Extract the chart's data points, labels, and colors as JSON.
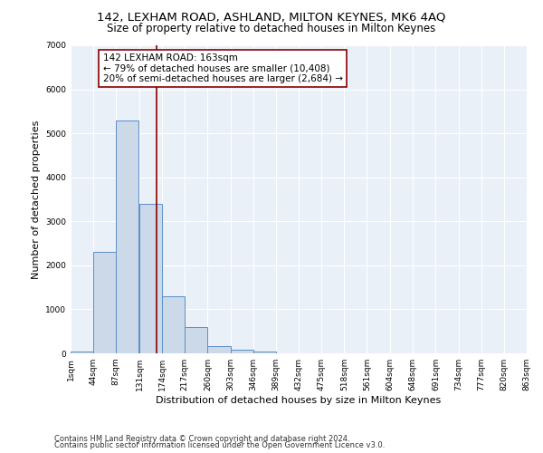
{
  "title1": "142, LEXHAM ROAD, ASHLAND, MILTON KEYNES, MK6 4AQ",
  "title2": "Size of property relative to detached houses in Milton Keynes",
  "xlabel": "Distribution of detached houses by size in Milton Keynes",
  "ylabel": "Number of detached properties",
  "footnote1": "Contains HM Land Registry data © Crown copyright and database right 2024.",
  "footnote2": "Contains public sector information licensed under the Open Government Licence v3.0.",
  "bar_starts": [
    1,
    44,
    87,
    131,
    174,
    217,
    260,
    303,
    346,
    389,
    432,
    475,
    518,
    561,
    604,
    648,
    691,
    734,
    777,
    820
  ],
  "bar_heights": [
    50,
    2300,
    5300,
    3400,
    1300,
    600,
    175,
    80,
    35,
    10,
    5,
    2,
    1,
    0,
    0,
    0,
    0,
    0,
    0,
    0
  ],
  "bin_width": 43,
  "bar_color": "#ccd9e8",
  "bar_edge_color": "#5b8fc9",
  "vline_x": 163,
  "vline_color": "#8b0000",
  "annotation_line1": "142 LEXHAM ROAD: 163sqm",
  "annotation_line2": "← 79% of detached houses are smaller (10,408)",
  "annotation_line3": "20% of semi-detached houses are larger (2,684) →",
  "annotation_box_color": "white",
  "annotation_box_edge": "#8b0000",
  "ylim": [
    0,
    7000
  ],
  "yticks": [
    0,
    1000,
    2000,
    3000,
    4000,
    5000,
    6000,
    7000
  ],
  "x_tick_labels": [
    "1sqm",
    "44sqm",
    "87sqm",
    "131sqm",
    "174sqm",
    "217sqm",
    "260sqm",
    "303sqm",
    "346sqm",
    "389sqm",
    "432sqm",
    "475sqm",
    "518sqm",
    "561sqm",
    "604sqm",
    "648sqm",
    "691sqm",
    "734sqm",
    "777sqm",
    "820sqm",
    "863sqm"
  ],
  "bg_color": "#eaf0f8",
  "fig_bg_color": "#ffffff",
  "title1_fontsize": 9.5,
  "title2_fontsize": 8.5,
  "annotation_fontsize": 7.5,
  "tick_fontsize": 6.5,
  "label_fontsize": 8,
  "footnote_fontsize": 6
}
